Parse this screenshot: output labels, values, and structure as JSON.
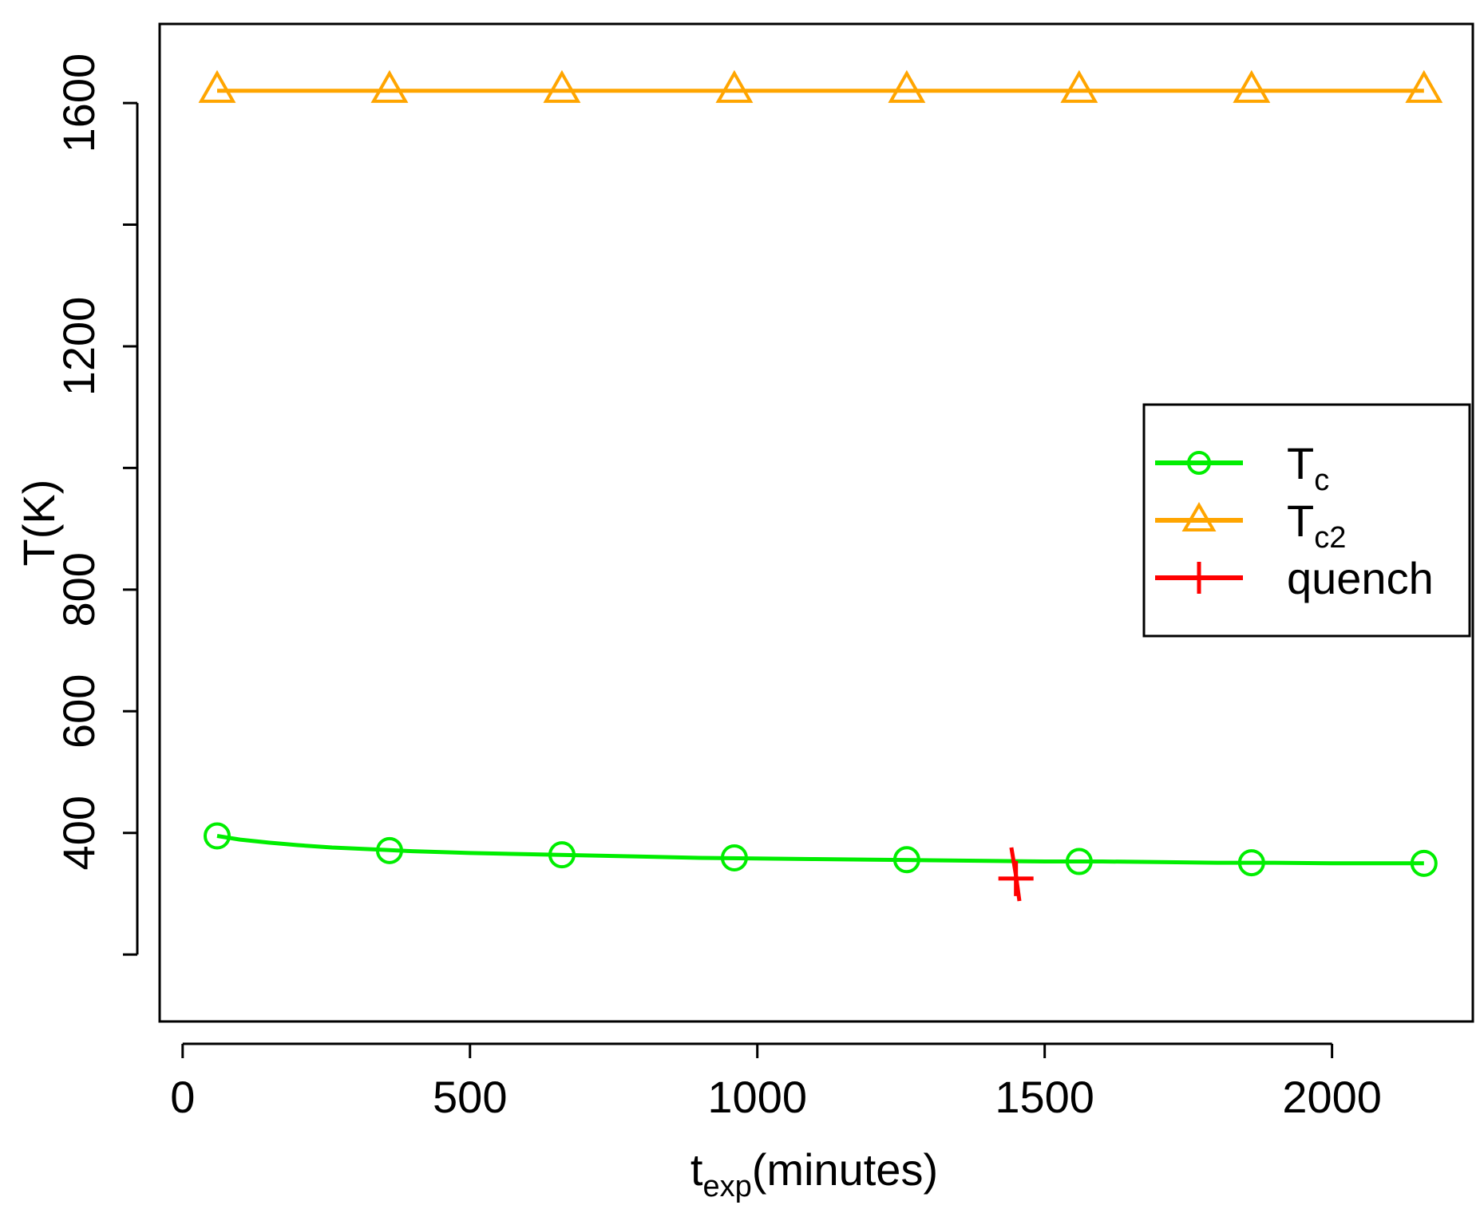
{
  "chart_data": {
    "type": "line",
    "xlabel": {
      "main": "t",
      "sub": "exp",
      "rest": "(minutes)"
    },
    "ylabel": "T(K)",
    "xlim": [
      -40,
      2245
    ],
    "ylim": [
      90,
      1730
    ],
    "xticks": [
      0,
      500,
      1000,
      1500,
      2000
    ],
    "xtick_labels": [
      "0",
      "500",
      "1000",
      "1500",
      "2000"
    ],
    "yticks": [
      200,
      400,
      600,
      800,
      1000,
      1200,
      1400,
      1600
    ],
    "ytick_labels": [
      "",
      "400",
      "600",
      "800",
      "",
      "1200",
      "",
      "1600"
    ],
    "grid": false,
    "legend_position": "right",
    "series": [
      {
        "name": "T",
        "name_sub": "c",
        "color": "#00ee00",
        "marker": "circle",
        "line_x": [
          60,
          100,
          150,
          200,
          260,
          330,
          400,
          500,
          600,
          700,
          800,
          900,
          1000,
          1100,
          1200,
          1300,
          1400,
          1500,
          1600,
          1700,
          1800,
          1900,
          2000,
          2100,
          2160
        ],
        "line_y": [
          395,
          389,
          384,
          380,
          376,
          373,
          370,
          367,
          365,
          363,
          361,
          359,
          358,
          357,
          356,
          355,
          354,
          353,
          353,
          352,
          351,
          351,
          350,
          350,
          350
        ],
        "marker_x": [
          60,
          360,
          660,
          960,
          1260,
          1560,
          1860,
          2160
        ],
        "marker_y": [
          395,
          371,
          364,
          359,
          356,
          353,
          351,
          350
        ]
      },
      {
        "name": "T",
        "name_sub": "c2",
        "color": "#ffa500",
        "marker": "triangle",
        "line_x": [
          60,
          2160
        ],
        "line_y": [
          1620,
          1620
        ],
        "marker_x": [
          60,
          360,
          660,
          960,
          1260,
          1560,
          1860,
          2160
        ],
        "marker_y": [
          1620,
          1620,
          1620,
          1620,
          1620,
          1620,
          1620,
          1620
        ]
      },
      {
        "name": "quench",
        "color": "#ff0000",
        "marker": "plus",
        "line_x": [
          1442,
          1450,
          1456
        ],
        "line_y": [
          376,
          330,
          288
        ],
        "marker_x": [
          1450
        ],
        "marker_y": [
          325
        ]
      }
    ]
  }
}
